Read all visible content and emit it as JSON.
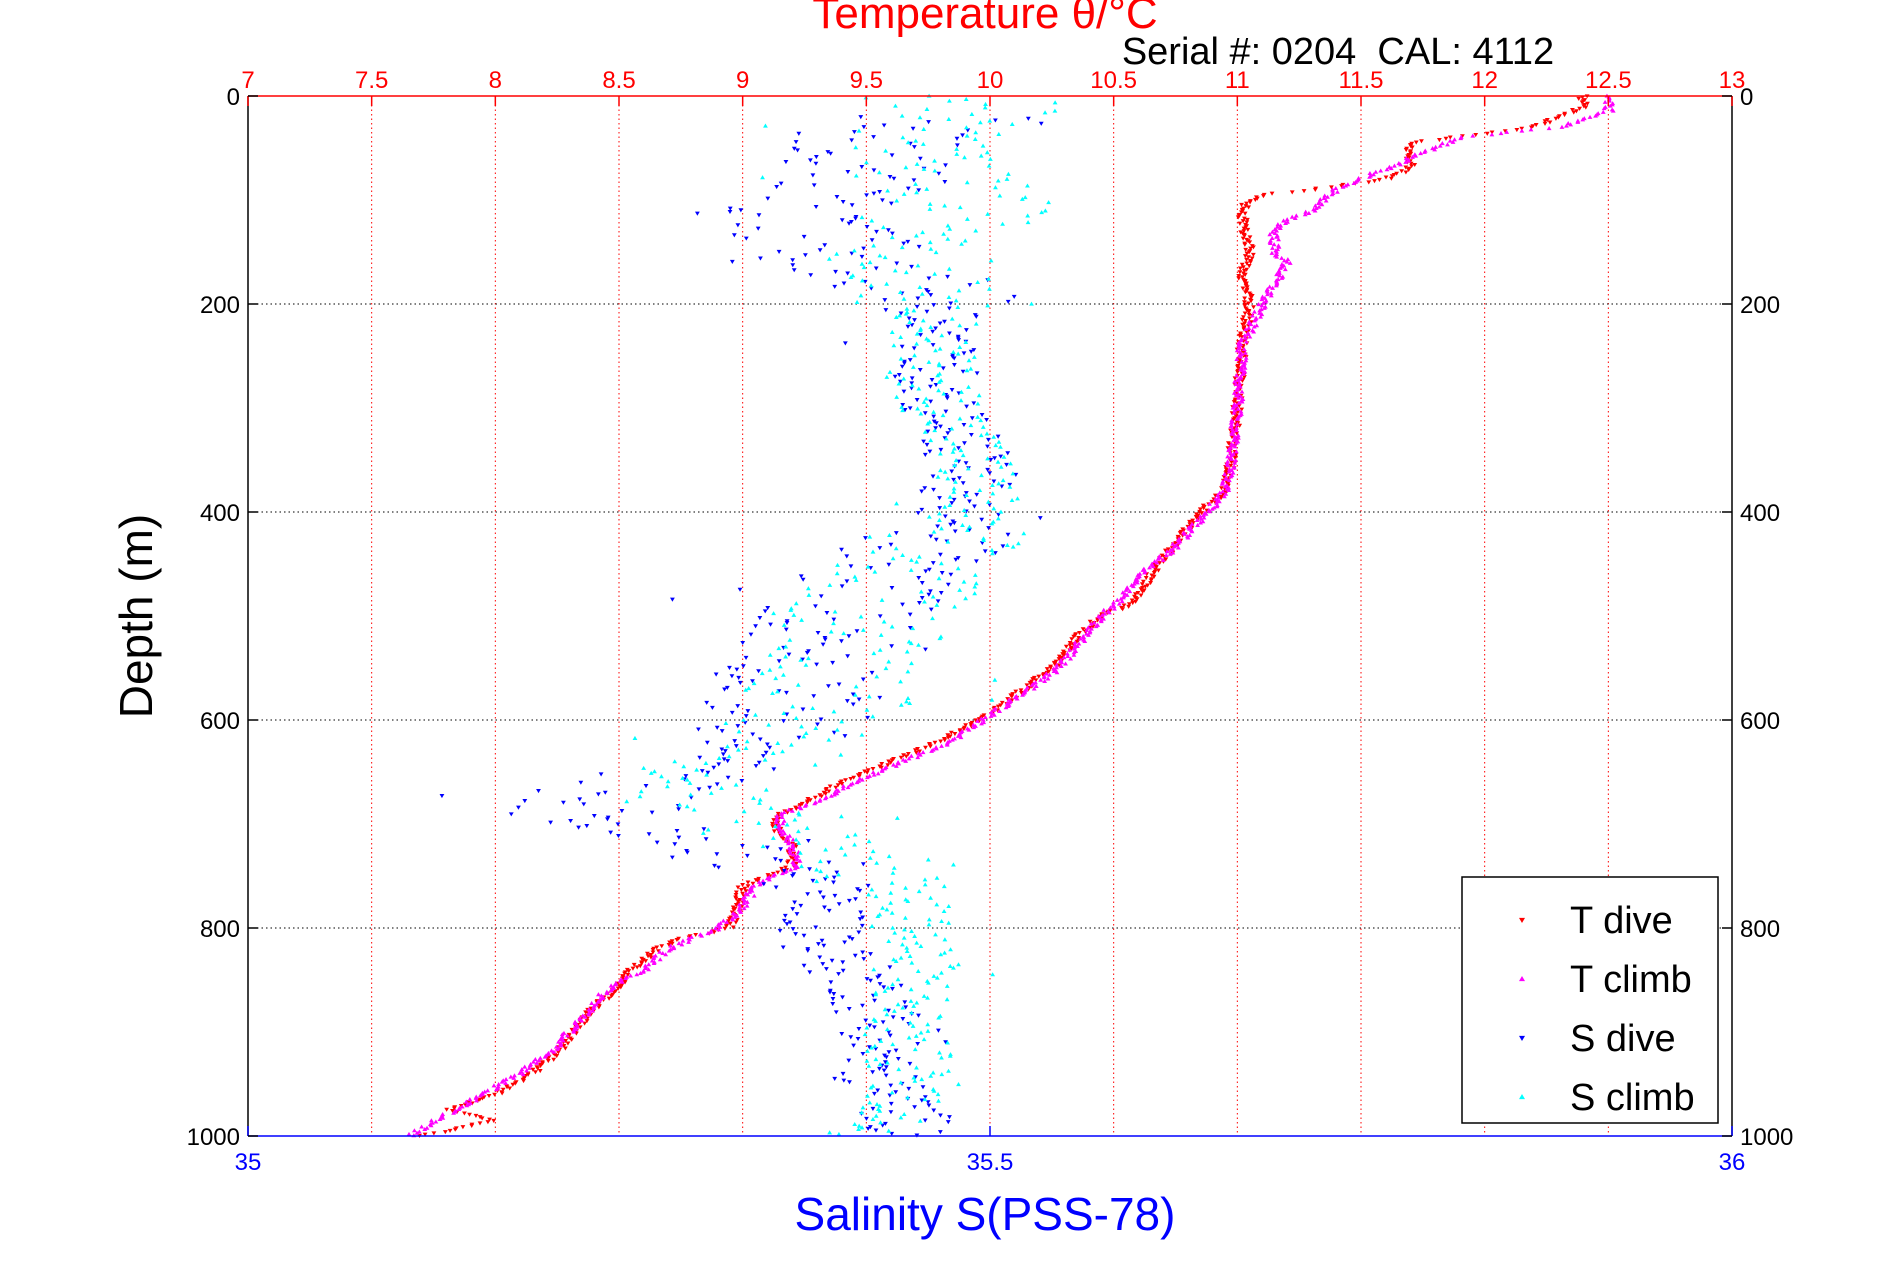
{
  "chart_data": {
    "type": "scatter",
    "title": "Temperature θ/°C",
    "subtitle": "Serial #: 0204  CAL: 4112",
    "ylabel": "Depth (m)",
    "xlabel": "Salinity S(PSS-78)",
    "y_axis": {
      "min": 0,
      "max": 1000,
      "reversed": true,
      "ticks": [
        0,
        200,
        400,
        600,
        800,
        1000
      ],
      "tick_labels": [
        "0",
        "200",
        "400",
        "600",
        "800",
        "1000"
      ]
    },
    "x_axis_top": {
      "quantity": "Temperature",
      "min": 7,
      "max": 13,
      "ticks": [
        7,
        7.5,
        8,
        8.5,
        9,
        9.5,
        10,
        10.5,
        11,
        11.5,
        12,
        12.5,
        13
      ],
      "tick_labels": [
        "7",
        "7.5",
        "8",
        "8.5",
        "9",
        "9.5",
        "10",
        "10.5",
        "11",
        "11.5",
        "12",
        "12.5",
        "13"
      ],
      "color": "#ff0000"
    },
    "x_axis_bottom": {
      "quantity": "Salinity",
      "min": 35,
      "max": 36,
      "ticks": [
        35,
        35.5,
        36
      ],
      "tick_labels": [
        "35",
        "35.5",
        "36"
      ],
      "color": "#0000ff"
    },
    "grid": true,
    "legend_position": "bottom-right",
    "series": [
      {
        "name": "T dive",
        "axis": "temperature",
        "marker": "triangle-down",
        "color": "#ff0000",
        "profile": [
          [
            0,
            12.4
          ],
          [
            10,
            12.4
          ],
          [
            30,
            12.2
          ],
          [
            45,
            11.7
          ],
          [
            70,
            11.7
          ],
          [
            80,
            11.6
          ],
          [
            90,
            11.3
          ],
          [
            95,
            11.1
          ],
          [
            100,
            11.05
          ],
          [
            110,
            11.02
          ],
          [
            130,
            11.03
          ],
          [
            150,
            11.05
          ],
          [
            170,
            11.02
          ],
          [
            200,
            11.05
          ],
          [
            240,
            11.02
          ],
          [
            300,
            11.0
          ],
          [
            360,
            10.97
          ],
          [
            380,
            10.95
          ],
          [
            400,
            10.85
          ],
          [
            430,
            10.75
          ],
          [
            460,
            10.65
          ],
          [
            480,
            10.6
          ],
          [
            490,
            10.55
          ],
          [
            500,
            10.45
          ],
          [
            520,
            10.35
          ],
          [
            550,
            10.25
          ],
          [
            580,
            10.08
          ],
          [
            600,
            9.95
          ],
          [
            620,
            9.8
          ],
          [
            640,
            9.6
          ],
          [
            660,
            9.4
          ],
          [
            680,
            9.25
          ],
          [
            690,
            9.15
          ],
          [
            700,
            9.12
          ],
          [
            720,
            9.2
          ],
          [
            740,
            9.2
          ],
          [
            750,
            9.1
          ],
          [
            760,
            9.0
          ],
          [
            780,
            8.98
          ],
          [
            800,
            8.95
          ],
          [
            810,
            8.75
          ],
          [
            820,
            8.65
          ],
          [
            840,
            8.55
          ],
          [
            860,
            8.48
          ],
          [
            880,
            8.38
          ],
          [
            900,
            8.32
          ],
          [
            920,
            8.25
          ],
          [
            940,
            8.15
          ],
          [
            960,
            8.0
          ],
          [
            975,
            7.8
          ],
          [
            985,
            8.0
          ],
          [
            995,
            7.8
          ],
          [
            1000,
            7.7
          ]
        ]
      },
      {
        "name": "T climb",
        "axis": "temperature",
        "marker": "triangle-up",
        "color": "#ff00ff",
        "profile": [
          [
            0,
            12.5
          ],
          [
            15,
            12.5
          ],
          [
            30,
            12.3
          ],
          [
            40,
            11.9
          ],
          [
            50,
            11.8
          ],
          [
            70,
            11.6
          ],
          [
            90,
            11.4
          ],
          [
            110,
            11.3
          ],
          [
            120,
            11.2
          ],
          [
            130,
            11.15
          ],
          [
            150,
            11.15
          ],
          [
            160,
            11.2
          ],
          [
            180,
            11.15
          ],
          [
            200,
            11.1
          ],
          [
            240,
            11.02
          ],
          [
            300,
            11.0
          ],
          [
            360,
            10.97
          ],
          [
            380,
            10.95
          ],
          [
            400,
            10.88
          ],
          [
            440,
            10.72
          ],
          [
            460,
            10.6
          ],
          [
            480,
            10.55
          ],
          [
            500,
            10.45
          ],
          [
            520,
            10.38
          ],
          [
            550,
            10.28
          ],
          [
            580,
            10.1
          ],
          [
            600,
            9.97
          ],
          [
            620,
            9.85
          ],
          [
            640,
            9.65
          ],
          [
            660,
            9.45
          ],
          [
            680,
            9.3
          ],
          [
            690,
            9.15
          ],
          [
            700,
            9.15
          ],
          [
            720,
            9.2
          ],
          [
            740,
            9.22
          ],
          [
            760,
            9.05
          ],
          [
            780,
            9.0
          ],
          [
            800,
            8.9
          ],
          [
            820,
            8.7
          ],
          [
            840,
            8.6
          ],
          [
            860,
            8.45
          ],
          [
            880,
            8.38
          ],
          [
            900,
            8.3
          ],
          [
            920,
            8.22
          ],
          [
            940,
            8.1
          ],
          [
            960,
            7.95
          ],
          [
            980,
            7.8
          ],
          [
            1000,
            7.65
          ]
        ]
      },
      {
        "name": "S dive",
        "axis": "salinity",
        "marker": "triangle-down",
        "color": "#0000ff",
        "profile": [
          [
            20,
            35.47
          ],
          [
            40,
            35.43
          ],
          [
            60,
            35.41
          ],
          [
            80,
            35.43
          ],
          [
            90,
            35.4
          ],
          [
            110,
            35.36
          ],
          [
            125,
            35.37
          ],
          [
            140,
            35.4
          ],
          [
            160,
            35.38
          ],
          [
            180,
            35.45
          ],
          [
            200,
            35.47
          ],
          [
            220,
            35.47
          ],
          [
            250,
            35.46
          ],
          [
            300,
            35.47
          ],
          [
            330,
            35.48
          ],
          [
            360,
            35.49
          ],
          [
            390,
            35.48
          ],
          [
            420,
            35.47
          ],
          [
            460,
            35.43
          ],
          [
            500,
            35.4
          ],
          [
            540,
            35.38
          ],
          [
            570,
            35.37
          ],
          [
            600,
            35.36
          ],
          [
            640,
            35.32
          ],
          [
            670,
            35.25
          ],
          [
            690,
            35.23
          ],
          [
            710,
            35.26
          ],
          [
            730,
            35.34
          ],
          [
            750,
            35.38
          ],
          [
            780,
            35.39
          ],
          [
            820,
            35.39
          ],
          [
            860,
            35.42
          ],
          [
            900,
            35.43
          ],
          [
            940,
            35.42
          ],
          [
            970,
            35.44
          ],
          [
            1000,
            35.45
          ]
        ]
      },
      {
        "name": "S climb",
        "axis": "salinity",
        "marker": "triangle-up",
        "color": "#00ffff",
        "profile": [
          [
            0,
            35.5
          ],
          [
            20,
            35.48
          ],
          [
            40,
            35.46
          ],
          [
            60,
            35.44
          ],
          [
            80,
            35.46
          ],
          [
            100,
            35.49
          ],
          [
            120,
            35.47
          ],
          [
            140,
            35.48
          ],
          [
            160,
            35.44
          ],
          [
            180,
            35.47
          ],
          [
            200,
            35.47
          ],
          [
            230,
            35.46
          ],
          [
            270,
            35.46
          ],
          [
            300,
            35.47
          ],
          [
            330,
            35.48
          ],
          [
            360,
            35.49
          ],
          [
            390,
            35.49
          ],
          [
            420,
            35.47
          ],
          [
            460,
            35.44
          ],
          [
            500,
            35.42
          ],
          [
            540,
            35.41
          ],
          [
            580,
            35.39
          ],
          [
            620,
            35.36
          ],
          [
            650,
            35.32
          ],
          [
            680,
            35.3
          ],
          [
            700,
            35.34
          ],
          [
            730,
            35.42
          ],
          [
            760,
            35.44
          ],
          [
            800,
            35.45
          ],
          [
            850,
            35.45
          ],
          [
            900,
            35.44
          ],
          [
            950,
            35.45
          ],
          [
            1000,
            35.42
          ]
        ]
      }
    ]
  },
  "legend": {
    "items": [
      {
        "label": "T dive",
        "color": "#ff0000",
        "marker": "triangle-down"
      },
      {
        "label": "T climb",
        "color": "#ff00ff",
        "marker": "triangle-up"
      },
      {
        "label": "S dive",
        "color": "#0000ff",
        "marker": "triangle-down"
      },
      {
        "label": "S climb",
        "color": "#00ffff",
        "marker": "triangle-up"
      }
    ]
  }
}
